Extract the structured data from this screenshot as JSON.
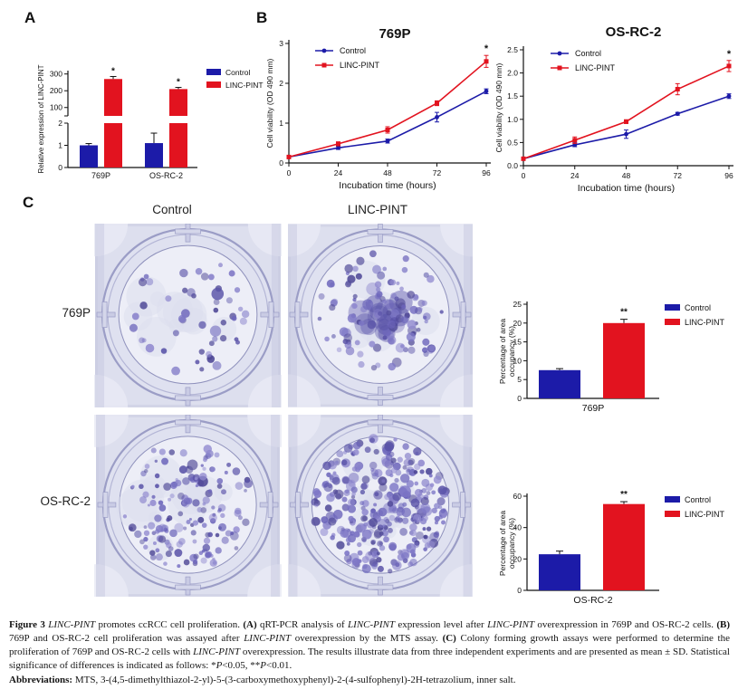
{
  "colors": {
    "blue": "#1c1ba8",
    "red": "#e2131f",
    "colony_palette": [
      "#6c65bb",
      "#5a53a8",
      "#7e77c6",
      "#9089cf",
      "#4e4796"
    ]
  },
  "panels": {
    "a_label": "A",
    "b_label": "B",
    "c_label": "C"
  },
  "panel_c": {
    "col_headers": [
      "Control",
      "LINC-PINT"
    ],
    "rows": [
      {
        "label": "769P",
        "dishes": [
          {
            "seed": 7,
            "colonies": 52,
            "min_r": 2,
            "max_r": 5,
            "bias": 0.55,
            "spread": 0.88,
            "blob": false
          },
          {
            "seed": 13,
            "colonies": 120,
            "min_r": 2,
            "max_r": 5.5,
            "bias": 0.6,
            "spread": 0.9,
            "blob": true
          }
        ]
      },
      {
        "label": "OS-RC-2",
        "dishes": [
          {
            "seed": 29,
            "colonies": 170,
            "min_r": 1.5,
            "max_r": 4.5,
            "bias": 0.52,
            "spread": 0.95,
            "blob": false
          },
          {
            "seed": 41,
            "colonies": 330,
            "min_r": 1.8,
            "max_r": 5.5,
            "bias": 0.5,
            "spread": 0.98,
            "blob": false
          }
        ]
      }
    ]
  },
  "chart_data": [
    {
      "id": "a",
      "type": "bar-broken",
      "ylabel": "Relative expression of LINC-PINT",
      "categories": [
        "769P",
        "OS-RC-2"
      ],
      "lower_ticks": [
        0,
        1,
        2
      ],
      "upper_ticks": [
        100,
        200,
        300
      ],
      "lower_max": 2,
      "upper_min": 50,
      "upper_max": 320,
      "series": [
        {
          "name": "Control",
          "color_key": "blue",
          "values": [
            1.0,
            1.1
          ],
          "errors": [
            0.08,
            0.45
          ]
        },
        {
          "name": "LINC-PINT",
          "color_key": "red",
          "values": [
            270,
            210
          ],
          "errors": [
            15,
            10
          ]
        }
      ],
      "sig": [
        "*",
        "*"
      ]
    },
    {
      "id": "b1",
      "type": "line",
      "title": "769P",
      "xlabel": "Incubation time (hours)",
      "ylabel": "Cell viability (OD 490 mm)",
      "x": [
        0,
        24,
        48,
        72,
        96
      ],
      "xtick_labels": [
        "0",
        "24",
        "48",
        "72",
        "96"
      ],
      "ylim": [
        0,
        3
      ],
      "yticks": [
        0,
        1,
        2,
        3
      ],
      "ytick_labels": [
        "0",
        "1",
        "2",
        "3"
      ],
      "series": [
        {
          "name": "Control",
          "color_key": "blue",
          "values": [
            0.15,
            0.38,
            0.55,
            1.15,
            1.8
          ],
          "errors": [
            0.02,
            0.04,
            0.05,
            0.12,
            0.06
          ]
        },
        {
          "name": "LINC-PINT",
          "color_key": "red",
          "values": [
            0.15,
            0.48,
            0.83,
            1.5,
            2.55
          ],
          "errors": [
            0.02,
            0.05,
            0.08,
            0.06,
            0.15
          ]
        }
      ],
      "sig_last": "*"
    },
    {
      "id": "b2",
      "type": "line",
      "title": "OS-RC-2",
      "xlabel": "Incubation time (hours)",
      "ylabel": "Cell viability (OD 490 mm)",
      "x": [
        0,
        24,
        48,
        72,
        96
      ],
      "xtick_labels": [
        "0",
        "24",
        "48",
        "72",
        "96"
      ],
      "ylim": [
        0,
        2.5
      ],
      "yticks": [
        0,
        0.5,
        1,
        1.5,
        2,
        2.5
      ],
      "ytick_labels": [
        "0.0",
        "0.5",
        "1.0",
        "1.5",
        "2.0",
        "2.5"
      ],
      "series": [
        {
          "name": "Control",
          "color_key": "blue",
          "values": [
            0.15,
            0.45,
            0.68,
            1.12,
            1.5
          ],
          "errors": [
            0.02,
            0.04,
            0.09,
            0.03,
            0.05
          ]
        },
        {
          "name": "LINC-PINT",
          "color_key": "red",
          "values": [
            0.15,
            0.55,
            0.95,
            1.65,
            2.15
          ],
          "errors": [
            0.02,
            0.07,
            0.04,
            0.12,
            0.12
          ]
        }
      ],
      "sig_last": "*"
    },
    {
      "id": "c1",
      "type": "bar",
      "category": "769P",
      "ylabel_lines": [
        "Percentage of area",
        "occupancy (%)"
      ],
      "ylim": [
        0,
        25
      ],
      "yticks": [
        0,
        5,
        10,
        15,
        20,
        25
      ],
      "series": [
        {
          "name": "Control",
          "color_key": "blue",
          "value": 7.5,
          "error": 0.4
        },
        {
          "name": "LINC-PINT",
          "color_key": "red",
          "value": 20,
          "error": 1.0
        }
      ],
      "sig": "**"
    },
    {
      "id": "c2",
      "type": "bar",
      "category": "OS-RC-2",
      "ylabel_lines": [
        "Percentage of area",
        "occupancy (%)"
      ],
      "ylim": [
        0,
        60
      ],
      "yticks": [
        0,
        20,
        40,
        60
      ],
      "series": [
        {
          "name": "Control",
          "color_key": "blue",
          "value": 23,
          "error": 2
        },
        {
          "name": "LINC-PINT",
          "color_key": "red",
          "value": 55,
          "error": 1.5
        }
      ],
      "sig": "**"
    }
  ],
  "caption": {
    "segments": [
      {
        "t": "Figure 3 ",
        "s": "b"
      },
      {
        "t": "LINC-PINT",
        "s": "i"
      },
      {
        "t": " promotes ccRCC cell proliferation. ",
        "s": ""
      },
      {
        "t": "(A)",
        "s": "b"
      },
      {
        "t": " qRT-PCR analysis of ",
        "s": ""
      },
      {
        "t": "LINC-PINT",
        "s": "i"
      },
      {
        "t": " expression level after ",
        "s": ""
      },
      {
        "t": "LINC-PINT",
        "s": "i"
      },
      {
        "t": " overexpression in 769P and OS-RC-2 cells. ",
        "s": ""
      },
      {
        "t": "(B)",
        "s": "b"
      },
      {
        "t": " 769P and OS-RC-2 cell proliferation was assayed after ",
        "s": ""
      },
      {
        "t": "LINC-PINT",
        "s": "i"
      },
      {
        "t": " overexpression by the MTS assay. ",
        "s": ""
      },
      {
        "t": "(C)",
        "s": "b"
      },
      {
        "t": " Colony forming growth assays were performed to determine the proliferation of 769P and OS-RC-2 cells with ",
        "s": ""
      },
      {
        "t": "LINC-PINT",
        "s": "i"
      },
      {
        "t": " overexpression. The results illustrate data from three independent experiments and are presented as mean ± SD. Statistical significance of differences is indicated as follows: *",
        "s": ""
      },
      {
        "t": "P",
        "s": "i"
      },
      {
        "t": "<0.05, **",
        "s": ""
      },
      {
        "t": "P",
        "s": "i"
      },
      {
        "t": "<0.01.",
        "s": ""
      }
    ],
    "abbrev_segments": [
      {
        "t": "Abbreviations:",
        "s": "b"
      },
      {
        "t": " MTS, 3-(4,5-dimethylthiazol-2-yl)-5-(3-carboxymethoxyphenyl)-2-(4-sulfophenyl)-2H-tetrazolium, inner salt.",
        "s": ""
      }
    ]
  }
}
